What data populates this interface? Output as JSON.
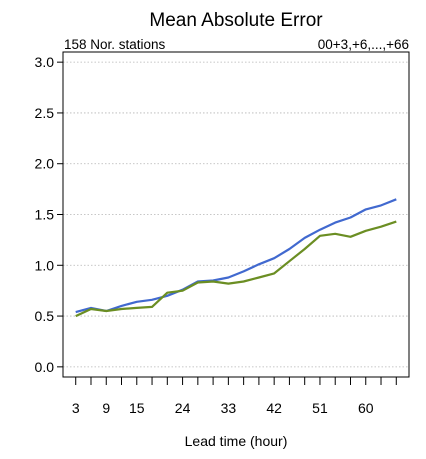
{
  "chart_data": {
    "type": "line",
    "title": "Mean Absolute Error",
    "subtitle_left": "158 Nor. stations",
    "subtitle_right": "00+3,+6,...,+66",
    "xlabel": "Lead time (hour)",
    "ylabel": "",
    "xlim": [
      0.5,
      68.5
    ],
    "ylim": [
      -0.1,
      3.1
    ],
    "x_tick_labels": [
      3,
      9,
      15,
      24,
      33,
      42,
      51,
      60
    ],
    "y_tick_labels": [
      "0.0",
      "0.5",
      "1.0",
      "1.5",
      "2.0",
      "2.5",
      "3.0"
    ],
    "grid": "horizontal-dotted",
    "x": [
      3,
      6,
      9,
      12,
      15,
      18,
      21,
      24,
      27,
      30,
      33,
      36,
      39,
      42,
      45,
      48,
      51,
      54,
      57,
      60,
      63,
      66
    ],
    "series": [
      {
        "color": "#4169cf",
        "values": [
          0.54,
          0.58,
          0.55,
          0.6,
          0.64,
          0.66,
          0.7,
          0.76,
          0.84,
          0.85,
          0.88,
          0.94,
          1.01,
          1.07,
          1.16,
          1.27,
          1.35,
          1.42,
          1.47,
          1.55,
          1.59,
          1.65
        ]
      },
      {
        "color": "#6b8e23",
        "values": [
          0.5,
          0.57,
          0.55,
          0.57,
          0.58,
          0.59,
          0.73,
          0.75,
          0.83,
          0.84,
          0.82,
          0.84,
          0.88,
          0.92,
          1.04,
          1.16,
          1.29,
          1.31,
          1.28,
          1.34,
          1.38,
          1.43
        ]
      }
    ]
  }
}
